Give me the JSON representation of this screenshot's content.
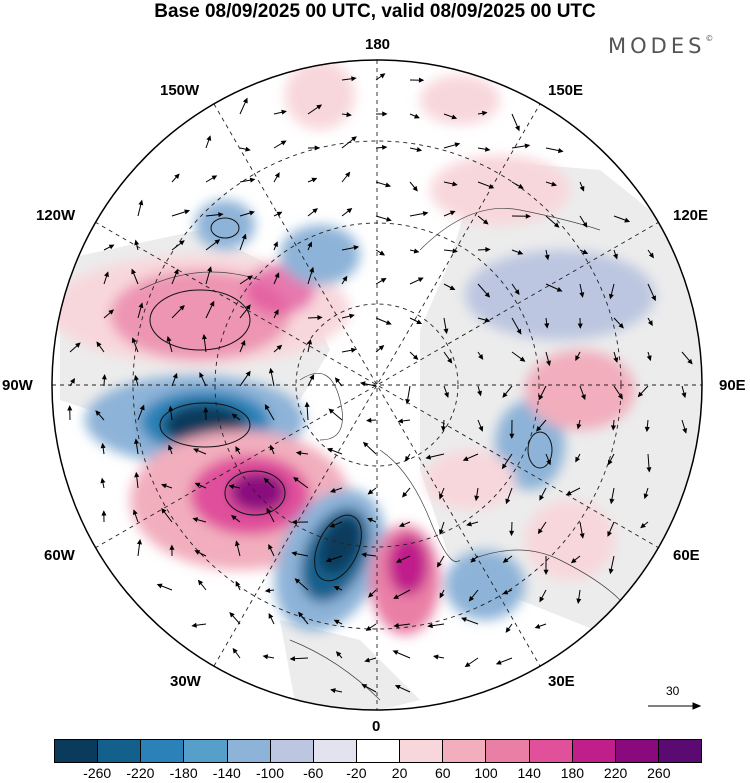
{
  "title": "Base 08/09/2025 00 UTC, valid 08/09/2025 00 UTC",
  "brand": "MODES",
  "brand_mark": "©",
  "longitude_labels": {
    "top": "180",
    "bottom": "0",
    "left": "90W",
    "right": "90E",
    "upper_left_1": "150W",
    "upper_left_2": "120W",
    "upper_right_1": "150E",
    "upper_right_2": "120E",
    "lower_left_1": "60W",
    "lower_left_2": "30W",
    "lower_right_1": "60E",
    "lower_right_2": "30E"
  },
  "vector_scale_label": "30",
  "legend": {
    "colors": [
      "#0b3b5c",
      "#14608c",
      "#2a82b8",
      "#569fcb",
      "#8db3d8",
      "#bcc6e0",
      "#e3e3f0",
      "#ffffff",
      "#f8d7dc",
      "#f2aebd",
      "#ea7fa6",
      "#e0509b",
      "#c01f8b",
      "#8a0a7e",
      "#5a0a70"
    ],
    "tick_labels": [
      "-260",
      "-220",
      "-180",
      "-140",
      "-100",
      "-60",
      "-20",
      "20",
      "60",
      "100",
      "140",
      "180",
      "220",
      "260"
    ]
  }
}
